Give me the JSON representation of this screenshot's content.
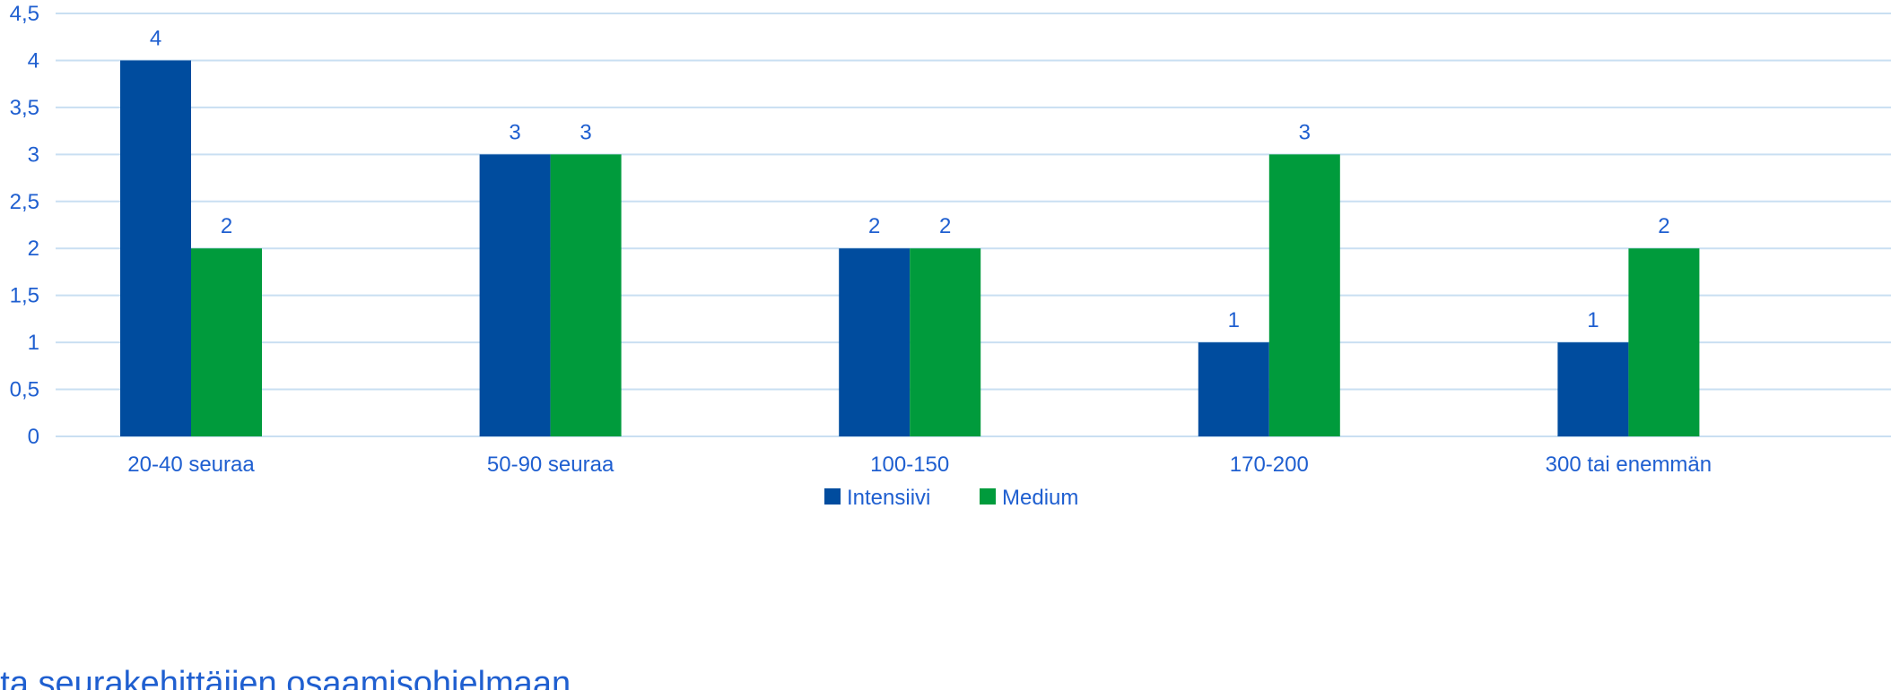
{
  "chart_data": {
    "type": "bar",
    "categories": [
      "20-40 seuraa",
      "50-90 seuraa",
      "100-150",
      "170-200",
      "300 tai enemmän"
    ],
    "series": [
      {
        "name": "Intensiivi",
        "values": [
          4,
          3,
          2,
          1,
          1
        ],
        "color": "#004c9e"
      },
      {
        "name": "Medium",
        "values": [
          2,
          3,
          2,
          3,
          2
        ],
        "color": "#009b3c"
      }
    ],
    "yticks": [
      "0",
      "0,5",
      "1",
      "1,5",
      "2",
      "2,5",
      "3",
      "3,5",
      "4",
      "4,5"
    ],
    "ylim": [
      0,
      4.5
    ],
    "grid": true,
    "legend_position": "bottom",
    "footer_text": "uota seurakehittäjien osaamisohjelmaan",
    "colors": {
      "grid": "#c9dff2",
      "text": "#1f5fd0"
    }
  }
}
